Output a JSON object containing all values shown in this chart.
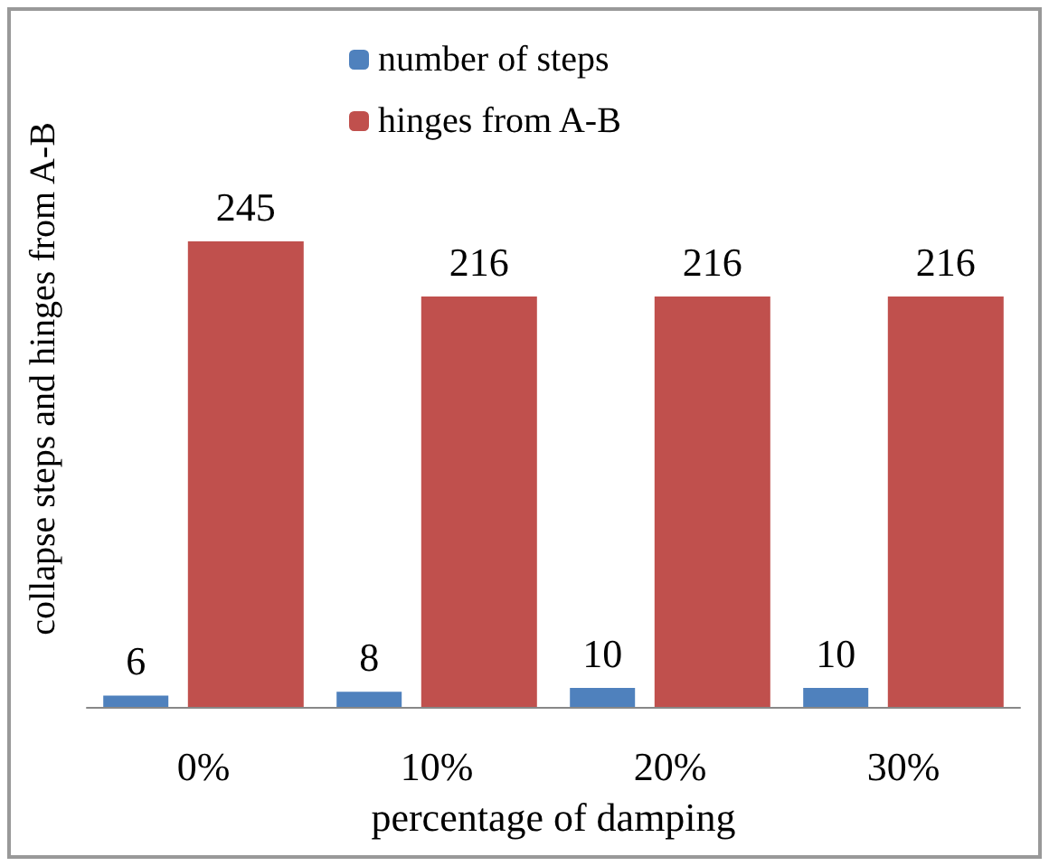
{
  "chart_data": {
    "type": "bar",
    "categories": [
      "0%",
      "10%",
      "20%",
      "30%"
    ],
    "xlabel": "percentage of damping",
    "ylabel": "collapse steps and hinges from A-B",
    "series": [
      {
        "name": "number of steps",
        "color": "#4f81bd",
        "values": [
          6,
          8,
          10,
          10
        ]
      },
      {
        "name": "hinges from A-B",
        "color": "#c0504d",
        "values": [
          245,
          216,
          216,
          216
        ]
      }
    ],
    "data_labels": true,
    "grid": false,
    "legend": "top"
  }
}
